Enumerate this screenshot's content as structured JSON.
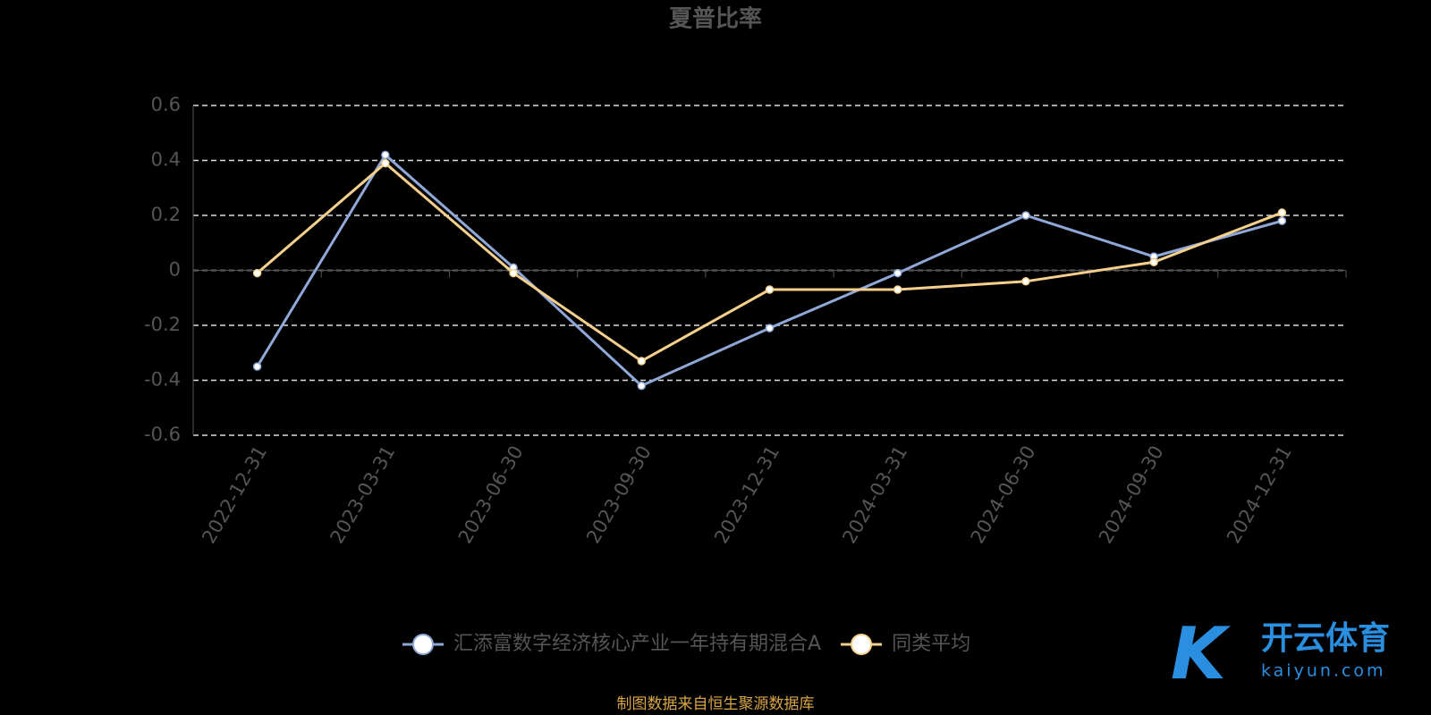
{
  "chart_data": {
    "type": "line",
    "title": "夏普比率",
    "categories": [
      "2022-12-31",
      "2023-03-31",
      "2023-06-30",
      "2023-09-30",
      "2023-12-31",
      "2024-03-31",
      "2024-06-30",
      "2024-09-30",
      "2024-12-31"
    ],
    "series": [
      {
        "name": "汇添富数字经济核心产业一年持有期混合A",
        "color": "#8fa8d8",
        "values": [
          -0.35,
          0.42,
          0.01,
          -0.42,
          -0.21,
          -0.01,
          0.2,
          0.05,
          0.18
        ]
      },
      {
        "name": "同类平均",
        "color": "#f5d08c",
        "values": [
          -0.01,
          0.39,
          -0.01,
          -0.33,
          -0.07,
          -0.07,
          -0.04,
          0.03,
          0.21
        ]
      }
    ],
    "ylim": [
      -0.6,
      0.6
    ],
    "yticks": [
      -0.6,
      -0.4,
      -0.2,
      0,
      0.2,
      0.4,
      0.6
    ],
    "grid": true,
    "source": "制图数据来自恒生聚源数据库",
    "watermark": {
      "brand": "开云体育",
      "site": "kaiyun.com"
    }
  }
}
